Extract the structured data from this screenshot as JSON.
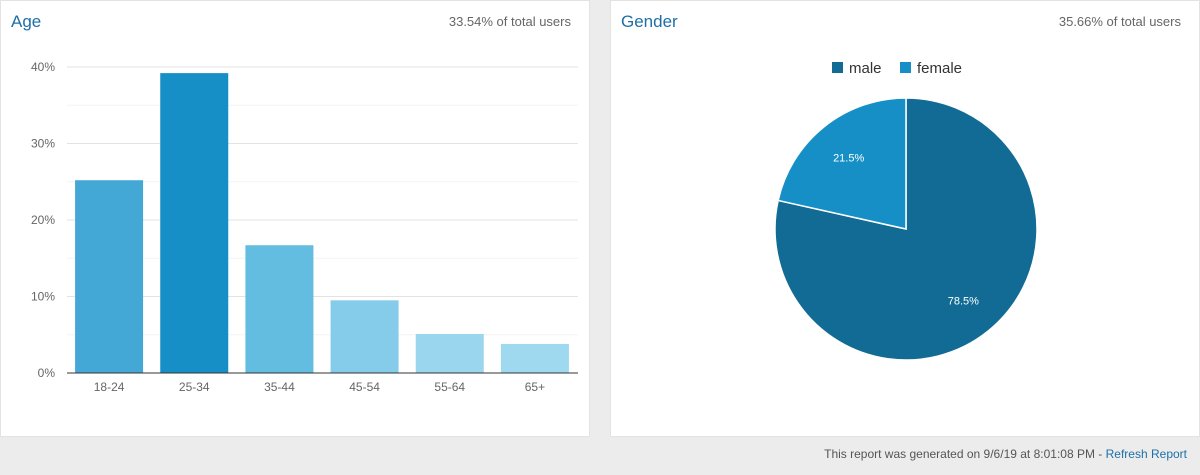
{
  "age_panel": {
    "title": "Age",
    "share": "33.54% of total users"
  },
  "gender_panel": {
    "title": "Gender",
    "share": "35.66% of total users"
  },
  "footer": {
    "text": "This report was generated on 9/6/19 at 8:01:08 PM - ",
    "link": "Refresh Report"
  },
  "chart_data": [
    {
      "type": "bar",
      "categories": [
        "18-24",
        "25-34",
        "35-44",
        "45-54",
        "55-64",
        "65+"
      ],
      "values": [
        25.2,
        39.2,
        16.7,
        9.5,
        5.1,
        3.8
      ],
      "colors": [
        "#44a8d6",
        "#168fc6",
        "#62bde0",
        "#85ccea",
        "#9bd6ef",
        "#9fd9f0"
      ],
      "ylim": [
        0,
        40
      ],
      "yticks": [
        0,
        10,
        20,
        30,
        40
      ],
      "ytick_labels": [
        "0%",
        "10%",
        "20%",
        "30%",
        "40%"
      ],
      "grid": true
    },
    {
      "type": "pie",
      "labels": [
        "male",
        "female"
      ],
      "values": [
        78.5,
        21.5
      ],
      "value_labels": [
        "78.5%",
        "21.5%"
      ],
      "colors": [
        "#116b94",
        "#168fc6"
      ],
      "legend": "top"
    }
  ]
}
